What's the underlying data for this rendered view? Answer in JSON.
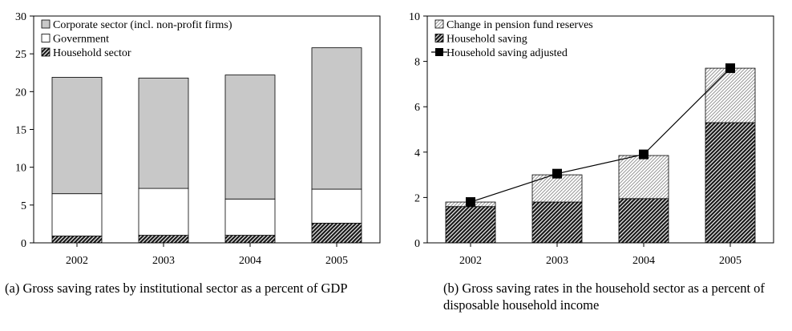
{
  "chart_data": [
    {
      "type": "bar",
      "stacked": true,
      "categories": [
        "2002",
        "2003",
        "2004",
        "2005"
      ],
      "series": [
        {
          "name": "Household sector",
          "values": [
            0.9,
            1.0,
            1.0,
            2.6
          ],
          "fill": "hatch-dense"
        },
        {
          "name": "Government",
          "values": [
            5.6,
            6.2,
            4.8,
            4.5
          ],
          "fill": "#ffffff"
        },
        {
          "name": "Corporate sector (incl. non-profit firms)",
          "values": [
            15.4,
            14.6,
            16.4,
            18.7
          ],
          "fill": "#c8c8c8"
        }
      ],
      "legend_order": [
        "Corporate sector (incl. non-profit firms)",
        "Government",
        "Household sector"
      ],
      "ylim": [
        0,
        30
      ],
      "yticks": [
        "0",
        "5",
        "10",
        "15",
        "20",
        "25",
        "30"
      ],
      "grid": false,
      "legend_position": "top-left",
      "caption": "(a) Gross saving rates by institutional sector as a percent of GDP"
    },
    {
      "type": "bar",
      "stacked": true,
      "categories": [
        "2002",
        "2003",
        "2004",
        "2005"
      ],
      "series": [
        {
          "name": "Household saving",
          "values": [
            1.6,
            1.8,
            1.95,
            5.3
          ],
          "fill": "hatch-dense"
        },
        {
          "name": "Change in pension fund reserves",
          "values": [
            0.2,
            1.2,
            1.9,
            2.4
          ],
          "fill": "hatch-light"
        }
      ],
      "line_series": {
        "name": "Household saving adjusted",
        "values": [
          1.8,
          3.05,
          3.9,
          7.7
        ],
        "color": "#000000"
      },
      "legend_order": [
        "Change in pension fund reserves",
        "Household saving",
        "Household saving adjusted"
      ],
      "ylim": [
        0,
        10
      ],
      "yticks": [
        "0",
        "2",
        "4",
        "6",
        "8",
        "10"
      ],
      "grid": false,
      "legend_position": "top-left",
      "caption": "(b) Gross saving rates in the household sector as a percent of disposable household income"
    }
  ]
}
